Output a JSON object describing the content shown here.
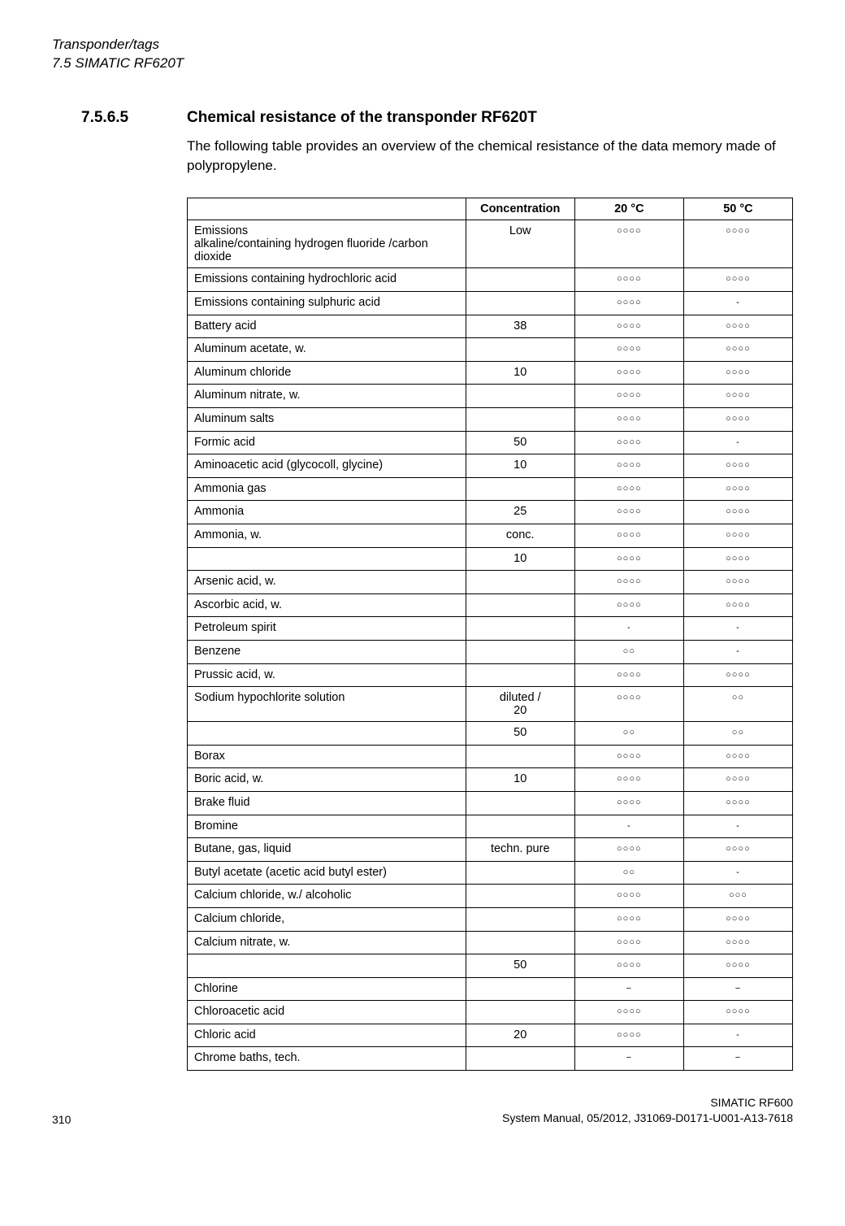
{
  "header": {
    "line1": "Transponder/tags",
    "line2": "7.5 SIMATIC RF620T"
  },
  "section": {
    "number": "7.5.6.5",
    "title": "Chemical resistance of the transponder RF620T",
    "intro": "The following table provides an overview of the chemical resistance of the data memory made of polypropylene."
  },
  "table": {
    "headers": [
      "",
      "Concentration",
      "20 °C",
      "50 °C"
    ],
    "rows": [
      {
        "chem": "Emissions\nalkaline/containing hydrogen fluoride /carbon dioxide",
        "conc": "Low",
        "c20": "○○○○",
        "c50": "○○○○"
      },
      {
        "chem": "Emissions containing hydrochloric acid",
        "conc": "",
        "c20": "○○○○",
        "c50": "○○○○"
      },
      {
        "chem": "Emissions containing sulphuric acid",
        "conc": "",
        "c20": "○○○○",
        "c50": "-"
      },
      {
        "chem": "Battery acid",
        "conc": "38",
        "c20": "○○○○",
        "c50": "○○○○"
      },
      {
        "chem": "Aluminum acetate, w.",
        "conc": "",
        "c20": "○○○○",
        "c50": "○○○○"
      },
      {
        "chem": "Aluminum chloride",
        "conc": "10",
        "c20": "○○○○",
        "c50": "○○○○"
      },
      {
        "chem": "Aluminum nitrate, w.",
        "conc": "",
        "c20": "○○○○",
        "c50": "○○○○"
      },
      {
        "chem": "Aluminum salts",
        "conc": "",
        "c20": "○○○○",
        "c50": "○○○○"
      },
      {
        "chem": "Formic acid",
        "conc": "50",
        "c20": "○○○○",
        "c50": "-"
      },
      {
        "chem": "Aminoacetic acid (glycocoll, glycine)",
        "conc": "10",
        "c20": "○○○○",
        "c50": "○○○○"
      },
      {
        "chem": "Ammonia gas",
        "conc": "",
        "c20": "○○○○",
        "c50": "○○○○"
      },
      {
        "chem": "Ammonia",
        "conc": "25",
        "c20": "○○○○",
        "c50": "○○○○"
      },
      {
        "chem": "Ammonia, w.",
        "conc": "conc.",
        "c20": "○○○○",
        "c50": "○○○○"
      },
      {
        "chem": "",
        "conc": "10",
        "c20": "○○○○",
        "c50": "○○○○"
      },
      {
        "chem": "Arsenic acid, w.",
        "conc": "",
        "c20": "○○○○",
        "c50": "○○○○"
      },
      {
        "chem": "Ascorbic acid, w.",
        "conc": "",
        "c20": "○○○○",
        "c50": "○○○○"
      },
      {
        "chem": "Petroleum spirit",
        "conc": "",
        "c20": "-",
        "c50": "-"
      },
      {
        "chem": "Benzene",
        "conc": "",
        "c20": "○○",
        "c50": "-"
      },
      {
        "chem": "Prussic acid, w.",
        "conc": "",
        "c20": "○○○○",
        "c50": "○○○○"
      },
      {
        "chem": "Sodium hypochlorite solution",
        "conc": "diluted /\n20",
        "c20": "○○○○",
        "c50": "○○"
      },
      {
        "chem": "",
        "conc": "50",
        "c20": "○○",
        "c50": "○○"
      },
      {
        "chem": "Borax",
        "conc": "",
        "c20": "○○○○",
        "c50": "○○○○"
      },
      {
        "chem": "Boric acid, w.",
        "conc": "10",
        "c20": "○○○○",
        "c50": "○○○○"
      },
      {
        "chem": "Brake fluid",
        "conc": "",
        "c20": "○○○○",
        "c50": "○○○○"
      },
      {
        "chem": "Bromine",
        "conc": "",
        "c20": "-",
        "c50": "-"
      },
      {
        "chem": "Butane, gas, liquid",
        "conc": "techn. pure",
        "c20": "○○○○",
        "c50": "○○○○"
      },
      {
        "chem": "Butyl acetate (acetic acid butyl ester)",
        "conc": "",
        "c20": "○○",
        "c50": "-"
      },
      {
        "chem": "Calcium chloride, w./ alcoholic",
        "conc": "",
        "c20": "○○○○",
        "c50": "○○○"
      },
      {
        "chem": "Calcium chloride,",
        "conc": "",
        "c20": "○○○○",
        "c50": "○○○○"
      },
      {
        "chem": "Calcium nitrate, w.",
        "conc": "",
        "c20": "○○○○",
        "c50": "○○○○"
      },
      {
        "chem": "",
        "conc": "50",
        "c20": "○○○○",
        "c50": "○○○○"
      },
      {
        "chem": "Chlorine",
        "conc": "",
        "c20": "−",
        "c50": "−"
      },
      {
        "chem": "Chloroacetic acid",
        "conc": "",
        "c20": "○○○○",
        "c50": "○○○○"
      },
      {
        "chem": "Chloric acid",
        "conc": "20",
        "c20": "○○○○",
        "c50": "-"
      },
      {
        "chem": "Chrome baths, tech.",
        "conc": "",
        "c20": "−",
        "c50": "−"
      }
    ]
  },
  "footer": {
    "page": "310",
    "right1": "SIMATIC RF600",
    "right2": "System Manual, 05/2012, J31069-D0171-U001-A13-7618"
  }
}
